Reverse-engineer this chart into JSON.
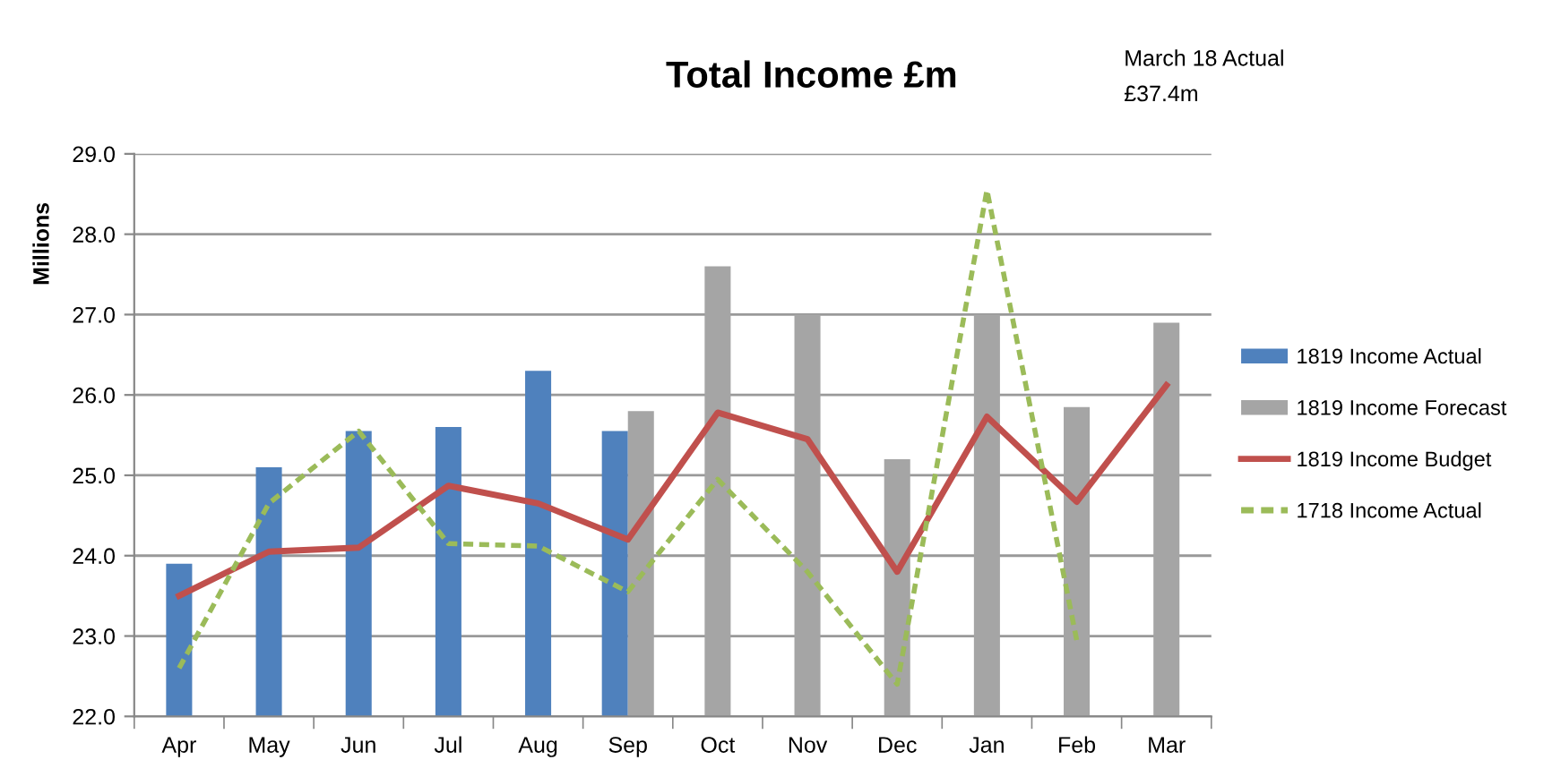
{
  "chart_data": {
    "type": "bar",
    "title": "Total Income £m",
    "ylabel": "Millions",
    "categories": [
      "Apr",
      "May",
      "Jun",
      "Jul",
      "Aug",
      "Sep",
      "Oct",
      "Nov",
      "Dec",
      "Jan",
      "Feb",
      "Mar"
    ],
    "series": [
      {
        "name": "1819 Income Actual",
        "color": "#4f81bd",
        "values": [
          23.9,
          25.1,
          25.55,
          25.6,
          26.3,
          25.55,
          null,
          null,
          null,
          null,
          null,
          null
        ]
      },
      {
        "name": "1819 Income Forecast",
        "color": "#a5a5a5",
        "values": [
          null,
          null,
          null,
          null,
          null,
          25.8,
          27.6,
          27.0,
          25.2,
          27.0,
          25.85,
          26.9
        ]
      },
      {
        "name": "1819 Income Budget",
        "type": "line",
        "color": "#c0504d",
        "line_style": "solid",
        "values": [
          23.5,
          24.05,
          24.1,
          24.87,
          24.65,
          24.2,
          25.78,
          25.45,
          23.8,
          25.73,
          24.67,
          26.12
        ]
      },
      {
        "name": "1718 Income Actual",
        "type": "line",
        "color": "#9bbb59",
        "line_style": "dashed",
        "values": [
          22.6,
          24.65,
          25.55,
          24.15,
          24.12,
          23.55,
          24.95,
          23.8,
          22.4,
          28.55,
          22.95,
          null
        ]
      }
    ],
    "ylim": [
      22,
      29
    ],
    "yticks": [
      {
        "value": 22,
        "label": "22.0"
      },
      {
        "value": 23,
        "label": "23.0"
      },
      {
        "value": 24,
        "label": "24.0"
      },
      {
        "value": 25,
        "label": "25.0"
      },
      {
        "value": 26,
        "label": "26.0"
      },
      {
        "value": 27,
        "label": "27.0"
      },
      {
        "value": 28,
        "label": "28.0"
      },
      {
        "value": 29,
        "label": "29.0"
      }
    ],
    "grid": "y",
    "legend": "right",
    "annotations": [
      "March 18 Actual\n£37.4m"
    ]
  }
}
